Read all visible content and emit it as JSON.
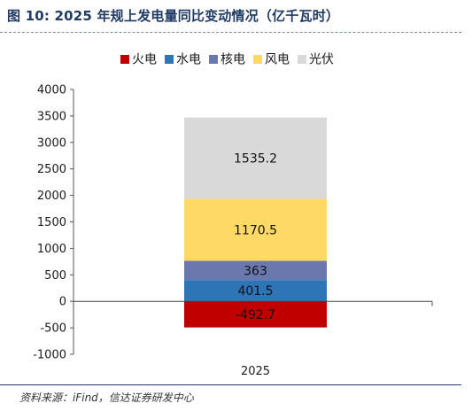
{
  "title": "图 10:  2025 年规上发电量同比变动情况（亿千瓦时）",
  "source": "资料来源：iFind，信达证券研发中心",
  "chart_data": {
    "type": "bar",
    "stacked": true,
    "categories": [
      "2025"
    ],
    "series": [
      {
        "name": "火电",
        "values": [
          -492.7
        ],
        "color": "#c00000"
      },
      {
        "name": "水电",
        "values": [
          401.5
        ],
        "color": "#2e75b6"
      },
      {
        "name": "核电",
        "values": [
          363
        ],
        "color": "#6b78ad"
      },
      {
        "name": "风电",
        "values": [
          1170.5
        ],
        "color": "#ffd966"
      },
      {
        "name": "光伏",
        "values": [
          1535.2
        ],
        "color": "#d9d9d9"
      }
    ],
    "data_labels": [
      "-492.7",
      "401.5",
      "363",
      "1170.5",
      "1535.2"
    ],
    "yticks": [
      4000,
      3500,
      3000,
      2500,
      2000,
      1500,
      1000,
      500,
      0,
      -500,
      -1000
    ],
    "ylim": [
      -1000,
      4000
    ],
    "legend_position": "top",
    "grid": false
  }
}
